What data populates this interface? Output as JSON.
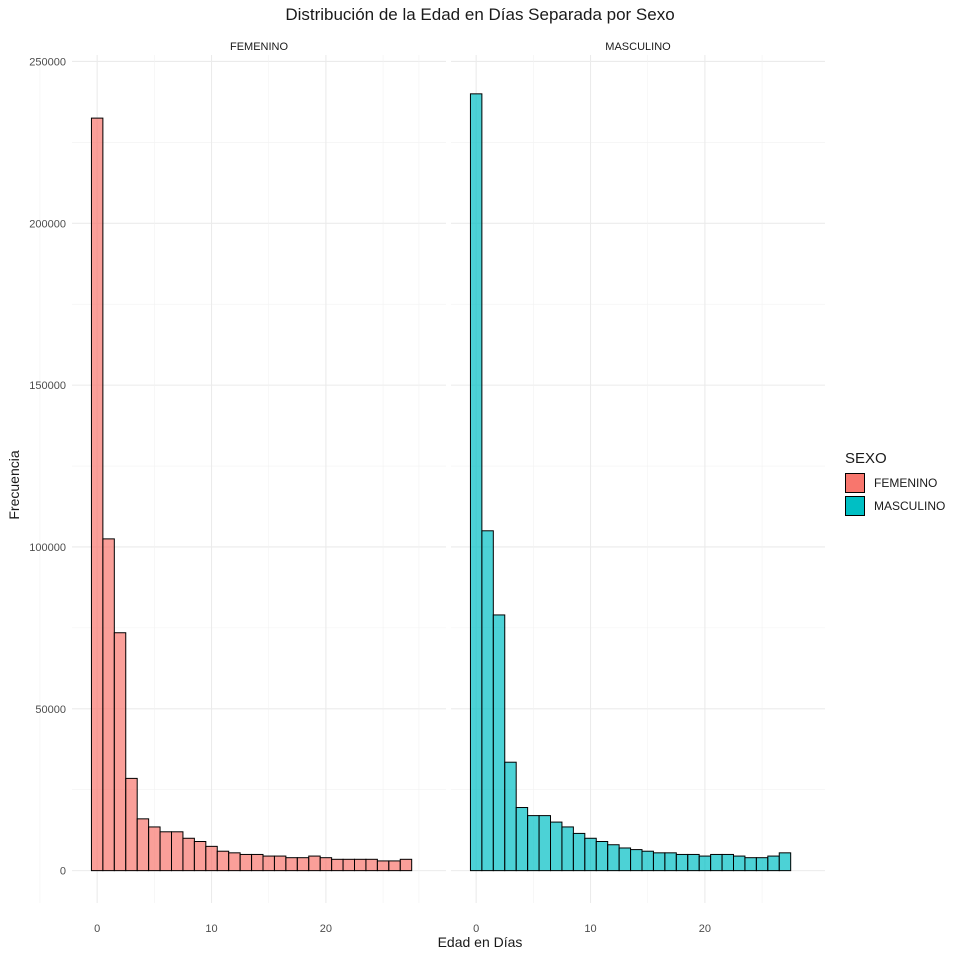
{
  "chart_data": {
    "type": "bar",
    "title": "Distribución de la Edad en Días Separada por Sexo",
    "xlabel": "Edad en Días",
    "ylabel": "Frecuencia",
    "x": [
      0,
      1,
      2,
      3,
      4,
      5,
      6,
      7,
      8,
      9,
      10,
      11,
      12,
      13,
      14,
      15,
      16,
      17,
      18,
      19,
      20,
      21,
      22,
      23,
      24,
      25,
      26,
      27
    ],
    "xlim": [
      -2.2,
      30.5
    ],
    "ylim": [
      -10000,
      252000
    ],
    "x_ticks": [
      "0",
      "10",
      "20"
    ],
    "y_ticks": [
      "0",
      "50000",
      "100000",
      "150000",
      "200000",
      "250000"
    ],
    "grid": true,
    "panels": [
      {
        "strip": "FEMENINO",
        "color": "#F8766D",
        "values": [
          232500,
          102500,
          73500,
          28500,
          16000,
          13500,
          12000,
          12000,
          10000,
          9000,
          7500,
          6000,
          5500,
          5000,
          5000,
          4500,
          4500,
          4000,
          4000,
          4500,
          4000,
          3500,
          3500,
          3500,
          3500,
          3000,
          3000,
          3500
        ]
      },
      {
        "strip": "MASCULINO",
        "color": "#00BFC4",
        "values": [
          240000,
          105000,
          79000,
          33500,
          19500,
          17000,
          17000,
          15000,
          13500,
          11500,
          10000,
          9000,
          8000,
          7000,
          6500,
          6000,
          5500,
          5500,
          5000,
          5000,
          4500,
          5000,
          5000,
          4500,
          4000,
          4000,
          4500,
          5500
        ]
      }
    ],
    "legend": {
      "title": "SEXO",
      "position": "right",
      "entries": [
        "FEMENINO",
        "MASCULINO"
      ]
    }
  }
}
